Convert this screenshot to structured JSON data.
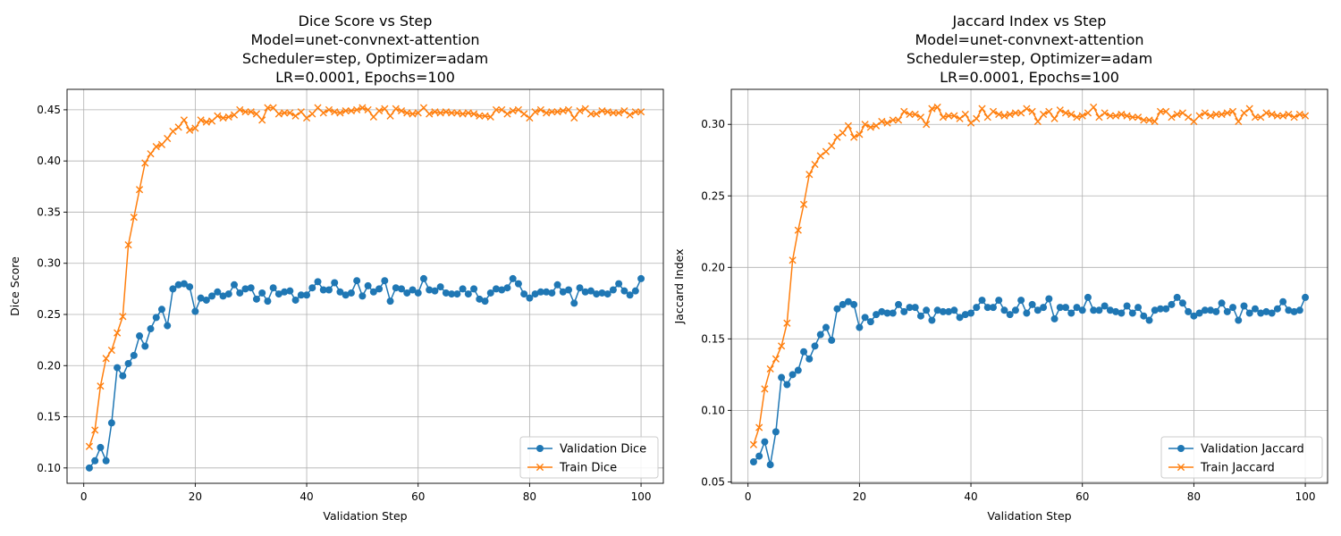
{
  "chart_data": [
    {
      "type": "line",
      "title_lines": [
        "Dice Score vs Step",
        "Model=unet-convnext-attention",
        "Scheduler=step, Optimizer=adam",
        "LR=0.0001, Epochs=100"
      ],
      "xlabel": "Validation Step",
      "ylabel": "Dice Score",
      "xlim": [
        -3,
        104
      ],
      "ylim": [
        0.085,
        0.47
      ],
      "xticks": [
        0,
        20,
        40,
        60,
        80,
        100
      ],
      "yticks": [
        0.1,
        0.15,
        0.2,
        0.25,
        0.3,
        0.35,
        0.4,
        0.45
      ],
      "ytick_decimals": 2,
      "grid": true,
      "legend_position": "lower-right",
      "series": [
        {
          "name": "Validation Dice",
          "color": "#1f77b4",
          "marker": "circle",
          "values": [
            0.1,
            0.107,
            0.12,
            0.107,
            0.144,
            0.198,
            0.19,
            0.202,
            0.21,
            0.229,
            0.219,
            0.236,
            0.247,
            0.255,
            0.239,
            0.275,
            0.279,
            0.28,
            0.277,
            0.253,
            0.266,
            0.264,
            0.268,
            0.272,
            0.268,
            0.27,
            0.279,
            0.271,
            0.275,
            0.276,
            0.265,
            0.271,
            0.263,
            0.276,
            0.27,
            0.272,
            0.273,
            0.264,
            0.269,
            0.269,
            0.276,
            0.282,
            0.274,
            0.274,
            0.281,
            0.272,
            0.269,
            0.271,
            0.283,
            0.268,
            0.278,
            0.272,
            0.275,
            0.283,
            0.263,
            0.276,
            0.275,
            0.271,
            0.274,
            0.271,
            0.285,
            0.274,
            0.273,
            0.277,
            0.271,
            0.27,
            0.27,
            0.275,
            0.27,
            0.275,
            0.265,
            0.263,
            0.271,
            0.275,
            0.274,
            0.276,
            0.285,
            0.28,
            0.27,
            0.266,
            0.27,
            0.272,
            0.272,
            0.271,
            0.279,
            0.272,
            0.274,
            0.261,
            0.276,
            0.272,
            0.273,
            0.27,
            0.271,
            0.27,
            0.274,
            0.28,
            0.273,
            0.269,
            0.273,
            0.285
          ]
        },
        {
          "name": "Train Dice",
          "color": "#ff7f0e",
          "marker": "x",
          "values": [
            0.121,
            0.137,
            0.18,
            0.207,
            0.215,
            0.232,
            0.248,
            0.318,
            0.345,
            0.372,
            0.398,
            0.407,
            0.414,
            0.416,
            0.422,
            0.429,
            0.433,
            0.44,
            0.43,
            0.432,
            0.44,
            0.438,
            0.439,
            0.444,
            0.442,
            0.443,
            0.445,
            0.45,
            0.448,
            0.448,
            0.446,
            0.44,
            0.452,
            0.452,
            0.446,
            0.447,
            0.447,
            0.444,
            0.448,
            0.442,
            0.446,
            0.452,
            0.447,
            0.45,
            0.448,
            0.447,
            0.449,
            0.449,
            0.45,
            0.452,
            0.45,
            0.443,
            0.449,
            0.451,
            0.444,
            0.451,
            0.449,
            0.447,
            0.446,
            0.447,
            0.452,
            0.446,
            0.448,
            0.447,
            0.448,
            0.447,
            0.447,
            0.446,
            0.447,
            0.446,
            0.444,
            0.444,
            0.443,
            0.45,
            0.45,
            0.446,
            0.449,
            0.45,
            0.446,
            0.442,
            0.448,
            0.45,
            0.447,
            0.448,
            0.448,
            0.449,
            0.45,
            0.442,
            0.449,
            0.451,
            0.446,
            0.446,
            0.449,
            0.448,
            0.447,
            0.447,
            0.449,
            0.445,
            0.448,
            0.448
          ]
        }
      ]
    },
    {
      "type": "line",
      "title_lines": [
        "Jaccard Index vs Step",
        "Model=unet-convnext-attention",
        "Scheduler=step, Optimizer=adam",
        "LR=0.0001, Epochs=100"
      ],
      "xlabel": "Validation Step",
      "ylabel": "Jaccard Index",
      "xlim": [
        -3,
        104
      ],
      "ylim": [
        0.049,
        0.3245
      ],
      "xticks": [
        0,
        20,
        40,
        60,
        80,
        100
      ],
      "yticks": [
        0.05,
        0.1,
        0.15,
        0.2,
        0.25,
        0.3
      ],
      "ytick_decimals": 2,
      "grid": true,
      "legend_position": "lower-right",
      "series": [
        {
          "name": "Validation Jaccard",
          "color": "#1f77b4",
          "marker": "circle",
          "values": [
            0.064,
            0.068,
            0.078,
            0.062,
            0.085,
            0.123,
            0.118,
            0.125,
            0.128,
            0.141,
            0.136,
            0.145,
            0.153,
            0.158,
            0.149,
            0.171,
            0.174,
            0.176,
            0.174,
            0.158,
            0.165,
            0.162,
            0.167,
            0.169,
            0.168,
            0.168,
            0.174,
            0.169,
            0.172,
            0.172,
            0.166,
            0.17,
            0.163,
            0.17,
            0.169,
            0.169,
            0.17,
            0.165,
            0.167,
            0.168,
            0.172,
            0.177,
            0.172,
            0.172,
            0.177,
            0.17,
            0.167,
            0.17,
            0.177,
            0.168,
            0.174,
            0.17,
            0.172,
            0.178,
            0.164,
            0.172,
            0.172,
            0.168,
            0.172,
            0.17,
            0.179,
            0.17,
            0.17,
            0.173,
            0.17,
            0.169,
            0.168,
            0.173,
            0.168,
            0.172,
            0.166,
            0.163,
            0.17,
            0.171,
            0.171,
            0.174,
            0.179,
            0.175,
            0.169,
            0.166,
            0.168,
            0.17,
            0.17,
            0.169,
            0.175,
            0.169,
            0.172,
            0.163,
            0.173,
            0.168,
            0.171,
            0.168,
            0.169,
            0.168,
            0.171,
            0.176,
            0.17,
            0.169,
            0.17,
            0.179
          ]
        },
        {
          "name": "Train Jaccard",
          "color": "#ff7f0e",
          "marker": "x",
          "values": [
            0.076,
            0.088,
            0.115,
            0.129,
            0.136,
            0.145,
            0.161,
            0.205,
            0.226,
            0.244,
            0.265,
            0.272,
            0.278,
            0.281,
            0.285,
            0.291,
            0.294,
            0.299,
            0.291,
            0.293,
            0.3,
            0.298,
            0.299,
            0.302,
            0.301,
            0.303,
            0.303,
            0.309,
            0.307,
            0.307,
            0.305,
            0.3,
            0.311,
            0.312,
            0.305,
            0.306,
            0.306,
            0.304,
            0.307,
            0.301,
            0.304,
            0.311,
            0.305,
            0.309,
            0.307,
            0.306,
            0.307,
            0.308,
            0.308,
            0.311,
            0.309,
            0.302,
            0.307,
            0.309,
            0.304,
            0.31,
            0.308,
            0.307,
            0.305,
            0.306,
            0.308,
            0.312,
            0.305,
            0.308,
            0.306,
            0.306,
            0.307,
            0.306,
            0.305,
            0.305,
            0.303,
            0.303,
            0.302,
            0.309,
            0.309,
            0.305,
            0.307,
            0.308,
            0.305,
            0.302,
            0.306,
            0.308,
            0.306,
            0.307,
            0.307,
            0.308,
            0.309,
            0.302,
            0.308,
            0.311,
            0.305,
            0.305,
            0.308,
            0.307,
            0.306,
            0.306,
            0.307,
            0.305,
            0.307,
            0.306
          ]
        }
      ]
    }
  ]
}
